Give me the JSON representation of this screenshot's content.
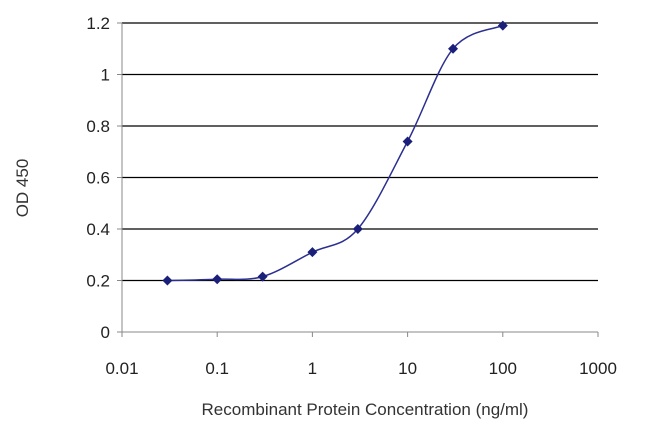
{
  "chart_data": {
    "type": "line",
    "title": "",
    "xlabel": "Recombinant Protein Concentration (ng/ml)",
    "ylabel": "OD 450",
    "x_scale": "log",
    "xlim": [
      0.01,
      1000
    ],
    "ylim": [
      0,
      1.2
    ],
    "x_ticks": [
      "0.01",
      "0.1",
      "1",
      "10",
      "100",
      "1000"
    ],
    "y_ticks": [
      "0",
      "0.2",
      "0.4",
      "0.6",
      "0.8",
      "1",
      "1.2"
    ],
    "grid": "horizontal",
    "legend": "none",
    "series": [
      {
        "x": [
          0.03,
          0.1,
          0.3,
          1,
          3,
          10,
          30,
          100
        ],
        "y": [
          0.2,
          0.205,
          0.215,
          0.31,
          0.4,
          0.74,
          1.1,
          1.19
        ]
      }
    ],
    "colors": {
      "line": "#2b2f8f",
      "marker": "#1a1f7a",
      "grid": "#000000",
      "axis": "#888888"
    }
  }
}
